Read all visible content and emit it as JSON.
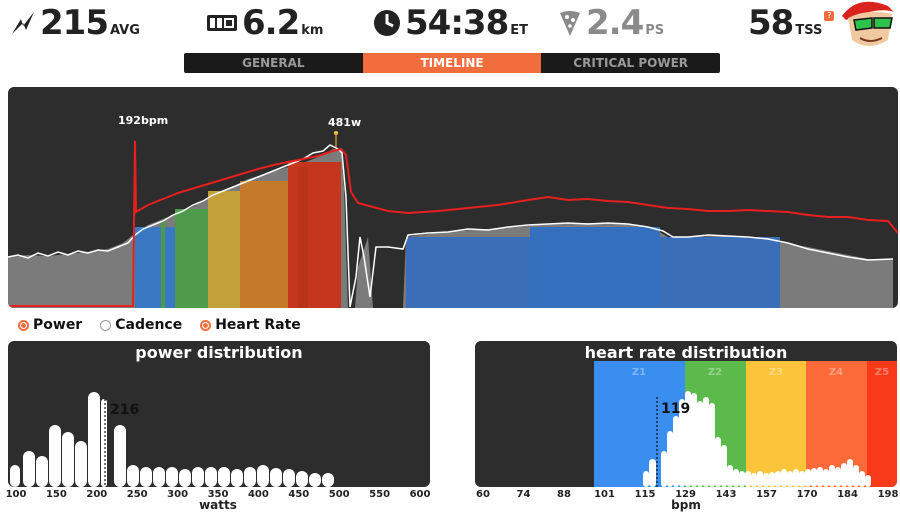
{
  "stats": {
    "avg_power": {
      "value": "215",
      "unit": "AVG"
    },
    "distance": {
      "value": "6.2",
      "unit": "km"
    },
    "time": {
      "value": "54:38",
      "unit": "ET"
    },
    "pizza": {
      "value": "2.4",
      "unit": "PS"
    },
    "tss": {
      "value": "58",
      "unit": "TSS",
      "badge": "?"
    }
  },
  "tabs": [
    {
      "label": "GENERAL",
      "active": false
    },
    {
      "label": "TIMELINE",
      "active": true
    },
    {
      "label": "CRITICAL POWER",
      "active": false
    }
  ],
  "timeline": {
    "peak_hr_label": "192bpm",
    "peak_power_label": "481w"
  },
  "legend": [
    {
      "label": "Power",
      "color": "#f26d3d",
      "selected": true
    },
    {
      "label": "Cadence",
      "color": "#ffffff",
      "selected": false
    },
    {
      "label": "Heart Rate",
      "color": "#f26d3d",
      "selected": true
    }
  ],
  "power_distribution": {
    "title": "power distribution",
    "xlabel": "watts",
    "avg_label": "216",
    "ticks": [
      "100",
      "150",
      "200",
      "250",
      "300",
      "350",
      "400",
      "450",
      "500",
      "550",
      "600"
    ]
  },
  "hr_distribution": {
    "title": "heart rate distribution",
    "xlabel": "bpm",
    "avg_label": "119",
    "ticks": [
      "60",
      "74",
      "88",
      "101",
      "115",
      "129",
      "143",
      "157",
      "170",
      "184",
      "198"
    ],
    "zones": [
      {
        "label": "Z1",
        "color": "#3a8ef0"
      },
      {
        "label": "Z2",
        "color": "#5cba4c"
      },
      {
        "label": "Z3",
        "color": "#fcc43a"
      },
      {
        "label": "Z4",
        "color": "#fc6a3a"
      },
      {
        "label": "Z5",
        "color": "#f93a1a"
      }
    ]
  },
  "colors": {
    "panel": "#2d2d2d",
    "accent": "#f26d3d",
    "hr_line": "#e6201e"
  }
}
